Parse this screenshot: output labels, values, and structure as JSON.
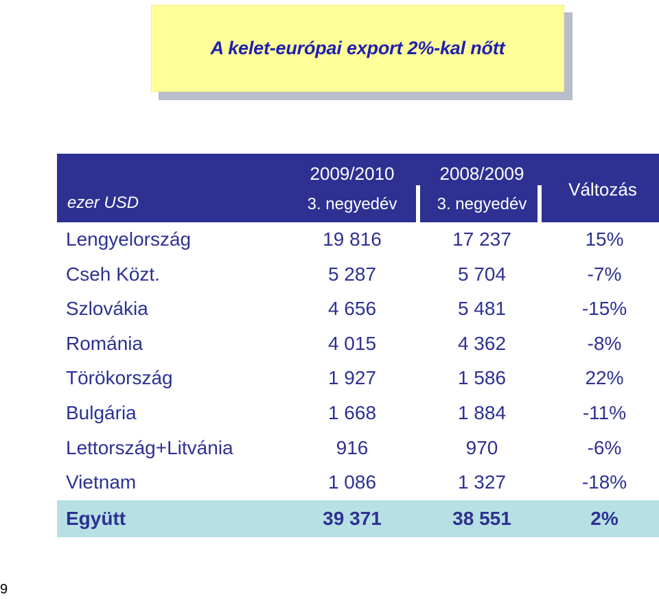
{
  "title": "A kelet-európai export 2%-kal nőtt",
  "table": {
    "unit_label": "ezer USD",
    "columns": [
      {
        "line1": "2009/2010",
        "line2": "3. negyedév"
      },
      {
        "line1": "2008/2009",
        "line2": "3. negyedév"
      }
    ],
    "change_label": "Változás",
    "rows": [
      {
        "country": "Lengyelország",
        "v1": "19 816",
        "v2": "17 237",
        "change": "15%"
      },
      {
        "country": "Cseh Közt.",
        "v1": "5 287",
        "v2": "5 704",
        "change": "-7%"
      },
      {
        "country": "Szlovákia",
        "v1": "4 656",
        "v2": "5 481",
        "change": "-15%"
      },
      {
        "country": "Románia",
        "v1": "4 015",
        "v2": "4 362",
        "change": "-8%"
      },
      {
        "country": "Törökország",
        "v1": "1 927",
        "v2": "1 586",
        "change": "22%"
      },
      {
        "country": "Bulgária",
        "v1": "1 668",
        "v2": "1 884",
        "change": "-11%"
      },
      {
        "country": "Lettország+Litvánia",
        "v1": "916",
        "v2": "970",
        "change": "-6%"
      },
      {
        "country": "Vietnam",
        "v1": "1 086",
        "v2": "1 327",
        "change": "-18%"
      }
    ],
    "total": {
      "country": "Együtt",
      "v1": "39 371",
      "v2": "38 551",
      "change": "2%"
    }
  },
  "page_number": "9",
  "colors": {
    "title_bg": "#ffff99",
    "title_text": "#1f1fb0",
    "header_bg": "#2e3192",
    "body_text": "#2e3192",
    "total_bg": "#b7e0e4"
  }
}
